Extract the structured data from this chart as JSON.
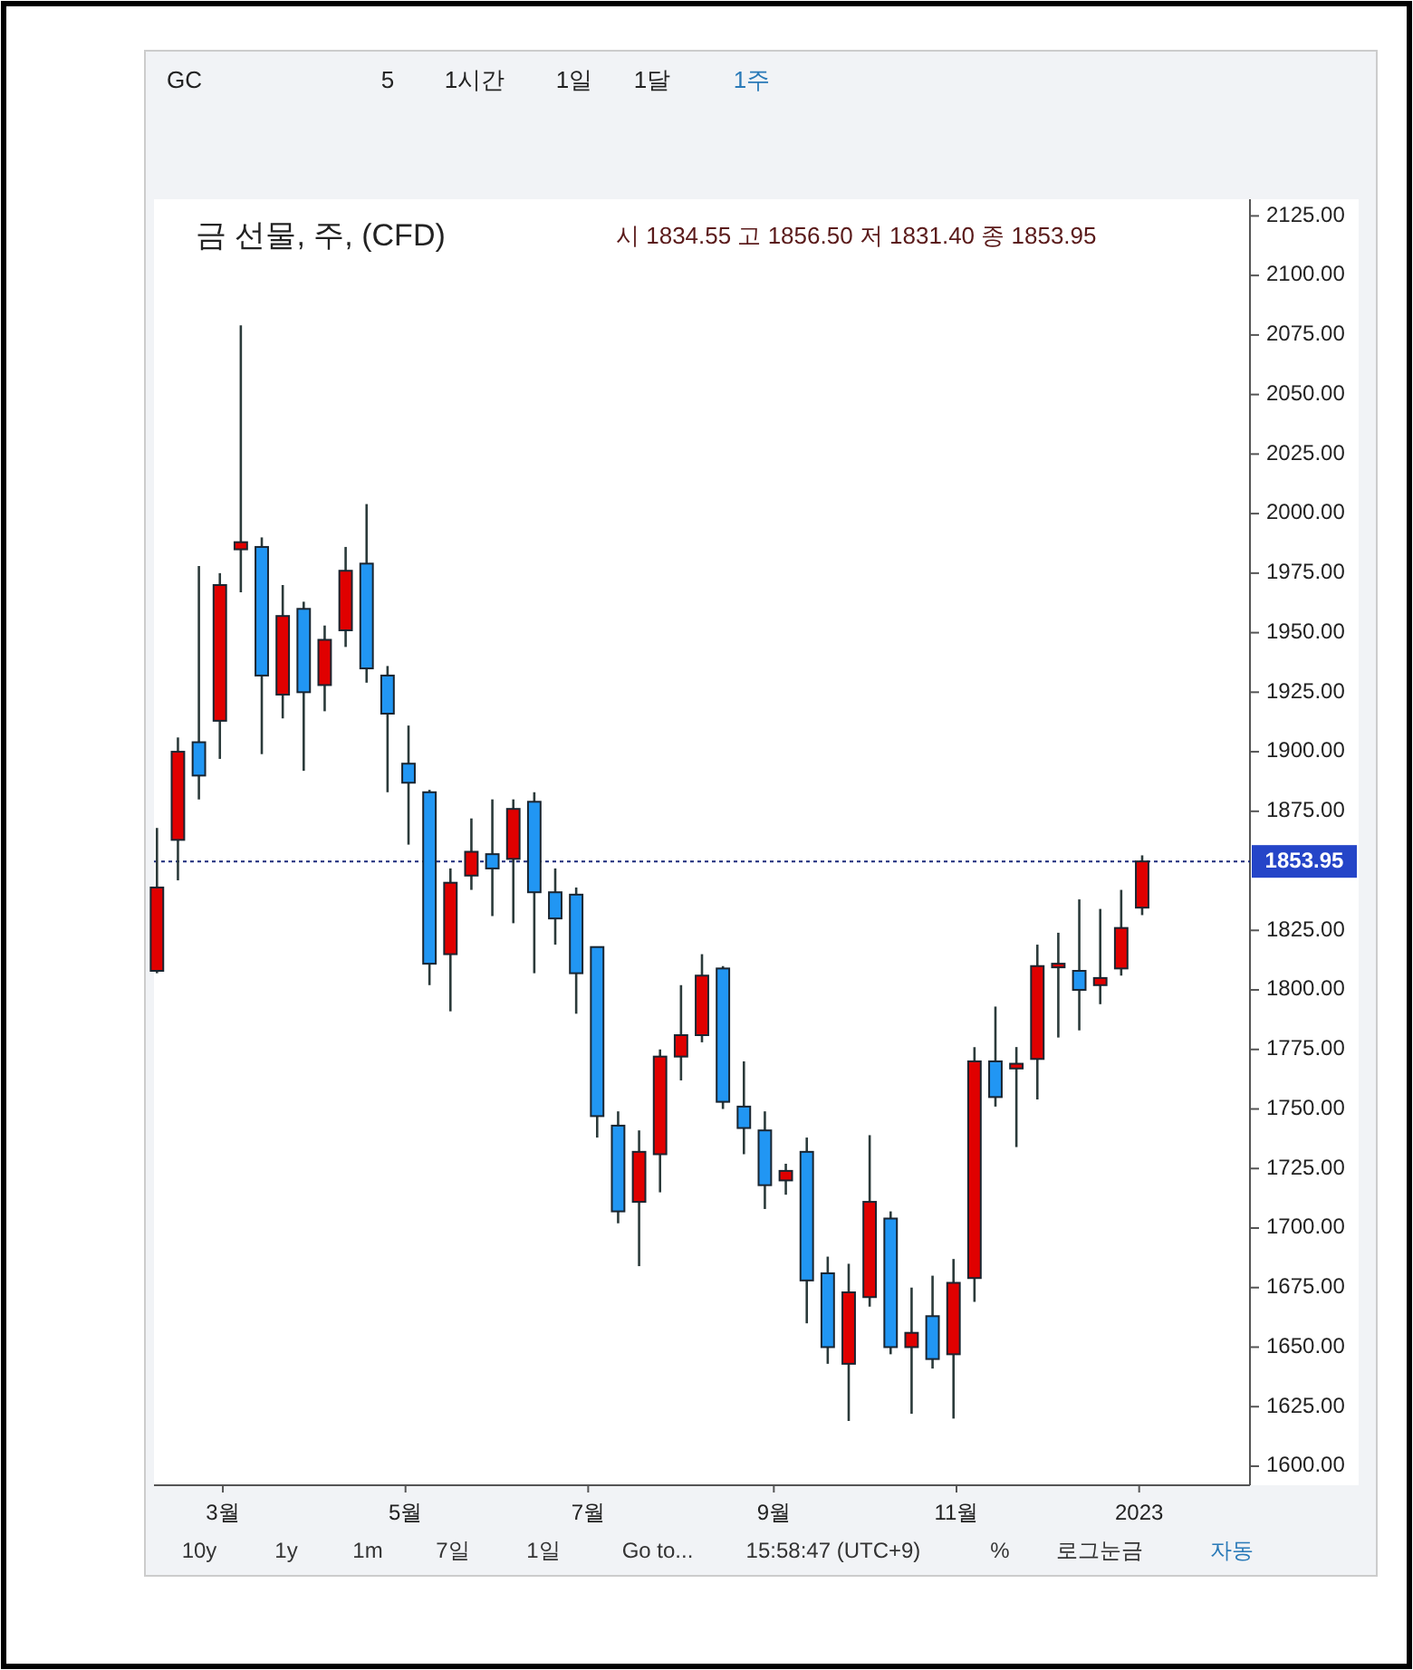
{
  "chart_data": {
    "type": "candlestick",
    "title": "금 선물, 주, (CFD)",
    "subtitle": "시 1834.55 고 1856.50 저 1831.40 종 1853.95",
    "x": [
      "2022-02-07",
      "2022-02-14",
      "2022-02-21",
      "2022-02-28",
      "2022-03-07",
      "2022-03-14",
      "2022-03-21",
      "2022-03-28",
      "2022-04-04",
      "2022-04-11",
      "2022-04-18",
      "2022-04-25",
      "2022-05-02",
      "2022-05-09",
      "2022-05-16",
      "2022-05-23",
      "2022-05-30",
      "2022-06-06",
      "2022-06-13",
      "2022-06-20",
      "2022-06-27",
      "2022-07-04",
      "2022-07-11",
      "2022-07-18",
      "2022-07-25",
      "2022-08-01",
      "2022-08-08",
      "2022-08-15",
      "2022-08-22",
      "2022-08-29",
      "2022-09-05",
      "2022-09-12",
      "2022-09-19",
      "2022-09-26",
      "2022-10-03",
      "2022-10-10",
      "2022-10-17",
      "2022-10-24",
      "2022-10-31",
      "2022-11-07",
      "2022-11-14",
      "2022-11-21",
      "2022-11-28",
      "2022-12-05",
      "2022-12-12",
      "2022-12-19",
      "2022-12-26",
      "2023-01-02"
    ],
    "ohlc": [
      [
        1808,
        1868,
        1807,
        1843
      ],
      [
        1863,
        1906,
        1846,
        1900
      ],
      [
        1904,
        1978,
        1880,
        1890
      ],
      [
        1913,
        1975,
        1897,
        1970
      ],
      [
        1985,
        2079,
        1967,
        1988
      ],
      [
        1986,
        1990,
        1899,
        1932
      ],
      [
        1924,
        1970,
        1914,
        1957
      ],
      [
        1960,
        1963,
        1892,
        1925
      ],
      [
        1928,
        1953,
        1917,
        1947
      ],
      [
        1951,
        1986,
        1944,
        1976
      ],
      [
        1979,
        2004,
        1929,
        1935
      ],
      [
        1932,
        1936,
        1883,
        1916
      ],
      [
        1895,
        1911,
        1861,
        1887
      ],
      [
        1883,
        1884,
        1802,
        1811
      ],
      [
        1815,
        1851,
        1791,
        1845
      ],
      [
        1848,
        1872,
        1842,
        1858
      ],
      [
        1857,
        1880,
        1831,
        1851
      ],
      [
        1855,
        1880,
        1828,
        1876
      ],
      [
        1879,
        1883,
        1807,
        1841
      ],
      [
        1841,
        1851,
        1819,
        1830
      ],
      [
        1840,
        1843,
        1790,
        1807
      ],
      [
        1818,
        1818,
        1738,
        1747
      ],
      [
        1743,
        1749,
        1702,
        1707
      ],
      [
        1711,
        1741,
        1684,
        1732
      ],
      [
        1731,
        1775,
        1715,
        1772
      ],
      [
        1772,
        1802,
        1762,
        1781
      ],
      [
        1781,
        1815,
        1778,
        1806
      ],
      [
        1809,
        1810,
        1750,
        1753
      ],
      [
        1751,
        1770,
        1731,
        1742
      ],
      [
        1741,
        1749,
        1708,
        1718
      ],
      [
        1720,
        1727,
        1714,
        1724
      ],
      [
        1732,
        1738,
        1660,
        1678
      ],
      [
        1681,
        1688,
        1643,
        1650
      ],
      [
        1643,
        1685,
        1619,
        1673
      ],
      [
        1671,
        1739,
        1667,
        1711
      ],
      [
        1704,
        1707,
        1647,
        1650
      ],
      [
        1650,
        1675,
        1622,
        1656
      ],
      [
        1663,
        1680,
        1641,
        1645
      ],
      [
        1647,
        1687,
        1620,
        1677
      ],
      [
        1679,
        1776,
        1669,
        1770
      ],
      [
        1770,
        1793,
        1751,
        1755
      ],
      [
        1767,
        1776,
        1734,
        1769
      ],
      [
        1771,
        1819,
        1754,
        1810
      ],
      [
        1810,
        1824,
        1780,
        1811
      ],
      [
        1808,
        1838,
        1783,
        1800
      ],
      [
        1802,
        1834,
        1794,
        1805
      ],
      [
        1809,
        1842,
        1806,
        1826
      ],
      [
        1834.55,
        1856.5,
        1831.4,
        1853.95
      ]
    ],
    "colors": [
      "#e00000",
      "#e00000",
      "#2196f3",
      "#e00000",
      "#e00000",
      "#2196f3",
      "#e00000",
      "#2196f3",
      "#e00000",
      "#e00000",
      "#2196f3",
      "#2196f3",
      "#2196f3",
      "#2196f3",
      "#e00000",
      "#e00000",
      "#2196f3",
      "#e00000",
      "#2196f3",
      "#2196f3",
      "#2196f3",
      "#2196f3",
      "#2196f3",
      "#e00000",
      "#e00000",
      "#e00000",
      "#e00000",
      "#2196f3",
      "#2196f3",
      "#2196f3",
      "#e00000",
      "#2196f3",
      "#2196f3",
      "#e00000",
      "#e00000",
      "#2196f3",
      "#e00000",
      "#2196f3",
      "#e00000",
      "#e00000",
      "#2196f3",
      "#e00000",
      "#e00000",
      "#e00000",
      "#2196f3",
      "#e00000",
      "#e00000",
      "#e00000"
    ],
    "xlim": [
      "2022-02-06",
      "2023-02-07"
    ],
    "xticks": [
      {
        "value": "2022-03-01",
        "label": "3월"
      },
      {
        "value": "2022-05-01",
        "label": "5월"
      },
      {
        "value": "2022-07-01",
        "label": "7월"
      },
      {
        "value": "2022-09-01",
        "label": "9월"
      },
      {
        "value": "2022-11-01",
        "label": "11월"
      },
      {
        "value": "2023-01-01",
        "label": "2023"
      }
    ],
    "ylim": [
      1592,
      2132
    ],
    "yticks": [
      {
        "value": 1600,
        "label": "1600.00"
      },
      {
        "value": 1625,
        "label": "1625.00"
      },
      {
        "value": 1650,
        "label": "1650.00"
      },
      {
        "value": 1675,
        "label": "1675.00"
      },
      {
        "value": 1700,
        "label": "1700.00"
      },
      {
        "value": 1725,
        "label": "1725.00"
      },
      {
        "value": 1750,
        "label": "1750.00"
      },
      {
        "value": 1775,
        "label": "1775.00"
      },
      {
        "value": 1800,
        "label": "1800.00"
      },
      {
        "value": 1825,
        "label": "1825.00"
      },
      {
        "value": 1875,
        "label": "1875.00"
      },
      {
        "value": 1900,
        "label": "1900.00"
      },
      {
        "value": 1925,
        "label": "1925.00"
      },
      {
        "value": 1950,
        "label": "1950.00"
      },
      {
        "value": 1975,
        "label": "1975.00"
      },
      {
        "value": 2000,
        "label": "2000.00"
      },
      {
        "value": 2025,
        "label": "2025.00"
      },
      {
        "value": 2050,
        "label": "2050.00"
      },
      {
        "value": 2075,
        "label": "2075.00"
      },
      {
        "value": 2100,
        "label": "2100.00"
      },
      {
        "value": 2125,
        "label": "2125.00"
      }
    ],
    "grid": false,
    "ref_lines": [
      {
        "axis": "y",
        "value": 1853.95,
        "label": "1853.95",
        "color": "#1a2a7a",
        "line_style": "dotted"
      }
    ],
    "annotations": [
      "GC",
      "5",
      "1시간",
      "1일",
      "1달",
      "1주",
      "10y",
      "1y",
      "1m",
      "7일",
      "1일",
      "Go to...",
      "15:58:47 (UTC+9)",
      "%",
      "로그눈금",
      "자동"
    ]
  }
}
